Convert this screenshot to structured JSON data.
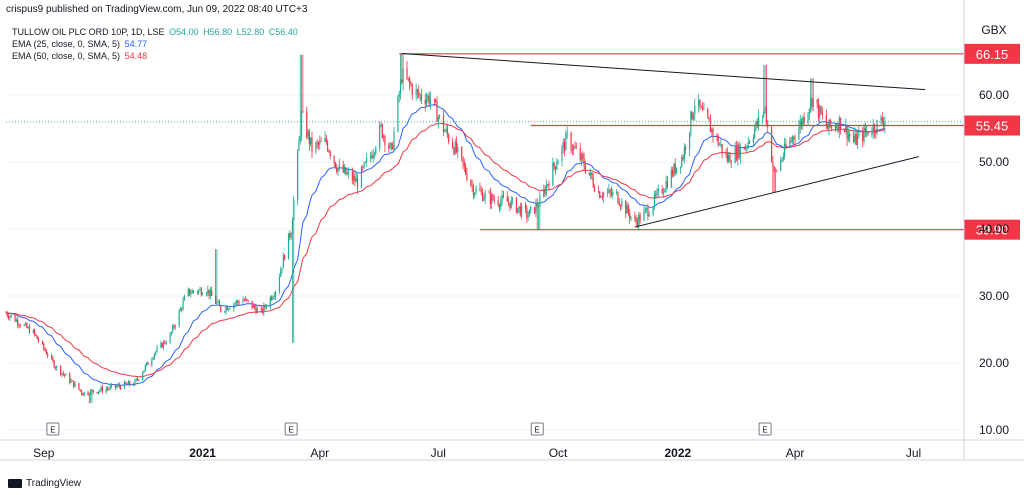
{
  "header": {
    "text": "crispus9 published on TradingView.com, Jun 09, 2022 08:40 UTC+3"
  },
  "legend": {
    "main": {
      "title": "TULLOW OIL PLC ORD 10P, 1D, LSE",
      "o": "O54.00",
      "h": "H56.80",
      "l": "L52.80",
      "c": "C56.40"
    },
    "ema25": {
      "label": "EMA (25, close, 0, SMA, 5)",
      "value": "54.77"
    },
    "ema50": {
      "label": "EMA (50, close, 0, SMA, 5)",
      "value": "54.48"
    }
  },
  "footer": {
    "brand": "TradingView"
  },
  "colors": {
    "up": "#22ab94",
    "down": "#f23645",
    "ema25": "#2962ff",
    "ema50": "#f23645",
    "level": "#f23645",
    "trend": "#131722"
  },
  "chart_data": {
    "type": "candlestick",
    "currency": "GBX",
    "y_ticks": [
      "10.00",
      "20.00",
      "30.00",
      "40.00",
      "50.00",
      "60.00"
    ],
    "y_tick_values": [
      10,
      20,
      30,
      40,
      50,
      60
    ],
    "x_ticks": [
      "Sep",
      "2021",
      "Apr",
      "Jul",
      "Oct",
      "2022",
      "Apr",
      "Jul"
    ],
    "x_tick_dates": [
      "2020-09-01",
      "2021-01-01",
      "2021-04-01",
      "2021-07-01",
      "2021-10-01",
      "2022-01-01",
      "2022-04-01",
      "2022-07-01"
    ],
    "x_range": [
      "2020-08-03",
      "2022-08-08"
    ],
    "y_range": [
      8.5,
      71.5
    ],
    "earnings_marker": "E",
    "earnings_dates": [
      "2020-09-08",
      "2021-03-10",
      "2021-09-15",
      "2022-03-09"
    ],
    "horizontal_levels": [
      {
        "label": "66.15",
        "value": 66.15,
        "from": "2021-06-01"
      },
      {
        "label": "55.45",
        "value": 55.45,
        "from": "2021-09-10"
      },
      {
        "label": "39.90",
        "value": 39.9,
        "from": "2021-08-02"
      }
    ],
    "trendlines": [
      {
        "from_date": "2021-06-03",
        "from_value": 66.2,
        "to_date": "2022-07-10",
        "to_value": 60.8
      },
      {
        "from_date": "2021-11-29",
        "from_value": 40.3,
        "to_date": "2022-07-05",
        "to_value": 50.8
      }
    ],
    "price_path": [
      [
        "2020-08-03",
        27.5
      ],
      [
        "2020-08-24",
        24.5
      ],
      [
        "2020-09-10",
        19.5
      ],
      [
        "2020-10-01",
        15.5
      ],
      [
        "2020-10-20",
        16.2
      ],
      [
        "2020-11-10",
        17.0
      ],
      [
        "2020-11-25",
        21.5
      ],
      [
        "2020-12-07",
        24.0
      ],
      [
        "2020-12-20",
        30.5
      ],
      [
        "2021-01-04",
        31.0
      ],
      [
        "2021-01-15",
        28.0
      ],
      [
        "2021-02-01",
        29.5
      ],
      [
        "2021-02-15",
        27.5
      ],
      [
        "2021-02-26",
        31.0
      ],
      [
        "2021-03-10",
        40.0
      ],
      [
        "2021-03-18",
        57.0
      ],
      [
        "2021-03-26",
        52.0
      ],
      [
        "2021-04-06",
        53.0
      ],
      [
        "2021-04-15",
        49.0
      ],
      [
        "2021-04-30",
        47.0
      ],
      [
        "2021-05-10",
        51.0
      ],
      [
        "2021-05-18",
        55.0
      ],
      [
        "2021-05-26",
        51.5
      ],
      [
        "2021-06-03",
        63.0
      ],
      [
        "2021-06-15",
        60.0
      ],
      [
        "2021-06-25",
        59.5
      ],
      [
        "2021-07-05",
        55.0
      ],
      [
        "2021-07-14",
        52.0
      ],
      [
        "2021-07-28",
        46.0
      ],
      [
        "2021-08-10",
        44.5
      ],
      [
        "2021-08-25",
        44.0
      ],
      [
        "2021-09-08",
        42.0
      ],
      [
        "2021-09-17",
        44.0
      ],
      [
        "2021-09-27",
        49.0
      ],
      [
        "2021-10-08",
        53.5
      ],
      [
        "2021-10-20",
        50.0
      ],
      [
        "2021-11-01",
        45.5
      ],
      [
        "2021-11-15",
        45.0
      ],
      [
        "2021-11-29",
        41.0
      ],
      [
        "2021-12-10",
        43.0
      ],
      [
        "2021-12-20",
        46.0
      ],
      [
        "2022-01-05",
        51.0
      ],
      [
        "2022-01-14",
        59.0
      ],
      [
        "2022-01-25",
        55.5
      ],
      [
        "2022-02-08",
        50.5
      ],
      [
        "2022-02-22",
        52.5
      ],
      [
        "2022-03-04",
        56.0
      ],
      [
        "2022-03-09",
        58.0
      ],
      [
        "2022-03-16",
        48.0
      ],
      [
        "2022-03-25",
        52.0
      ],
      [
        "2022-04-06",
        56.0
      ],
      [
        "2022-04-14",
        59.5
      ],
      [
        "2022-04-26",
        55.0
      ],
      [
        "2022-05-06",
        56.0
      ],
      [
        "2022-05-16",
        53.0
      ],
      [
        "2022-05-26",
        54.5
      ],
      [
        "2022-06-09",
        56.4
      ]
    ],
    "spikes": [
      [
        "2021-03-18",
        66.0
      ],
      [
        "2021-06-03",
        66.2
      ],
      [
        "2022-03-09",
        64.5
      ],
      [
        "2022-04-14",
        62.5
      ],
      [
        "2021-09-16",
        39.9
      ],
      [
        "2021-03-12",
        23.0
      ],
      [
        "2020-10-07",
        14.0
      ],
      [
        "2021-01-11",
        37.0
      ],
      [
        "2022-03-16",
        45.5
      ]
    ]
  }
}
